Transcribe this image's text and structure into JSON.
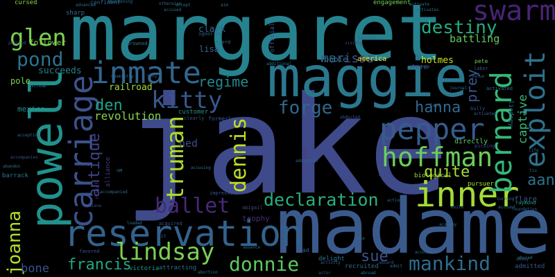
{
  "words": [
    {
      "text": "jake",
      "color": "#3f4a8a"
    },
    {
      "text": "madame",
      "color": "#3b5a8c"
    },
    {
      "text": "margaret",
      "color": "#26828e"
    },
    {
      "text": "maggie",
      "color": "#2a788e"
    },
    {
      "text": "powell",
      "color": "#21918c"
    },
    {
      "text": "reservation",
      "color": "#33628d"
    },
    {
      "text": "inmate",
      "color": "#31668e"
    },
    {
      "text": "carriage",
      "color": "#3b528b"
    },
    {
      "text": "inner",
      "color": "#a5db36"
    },
    {
      "text": "bernard",
      "color": "#35b779"
    },
    {
      "text": "exploit",
      "color": "#2c728e"
    },
    {
      "text": "pepper",
      "color": "#365c8d"
    },
    {
      "text": "hoffman",
      "color": "#6ccd5a"
    },
    {
      "text": "swarm",
      "color": "#482475"
    },
    {
      "text": "destiny",
      "color": "#25ab82"
    },
    {
      "text": "kitty",
      "color": "#38588c"
    },
    {
      "text": "glen",
      "color": "#7ad151"
    },
    {
      "text": "pond",
      "color": "#2c728e"
    },
    {
      "text": "truman",
      "color": "#addc30"
    },
    {
      "text": "dennis",
      "color": "#c2df23"
    },
    {
      "text": "ballet",
      "color": "#482878"
    },
    {
      "text": "lindsay",
      "color": "#7ad151"
    },
    {
      "text": "joanna",
      "color": "#b5de2b"
    },
    {
      "text": "donnie",
      "color": "#5ec962"
    },
    {
      "text": "declaration",
      "color": "#2ab07f"
    },
    {
      "text": "mankind",
      "color": "#2f6c8e"
    },
    {
      "text": "antique",
      "color": "#414487"
    },
    {
      "text": "forge",
      "color": "#31688e"
    },
    {
      "text": "hanna",
      "color": "#31688e"
    },
    {
      "text": "quite",
      "color": "#a8db34"
    },
    {
      "text": "aang",
      "color": "#2c728e"
    },
    {
      "text": "francis",
      "color": "#22a785"
    },
    {
      "text": "den",
      "color": "#20a386"
    },
    {
      "text": "regime",
      "color": "#23898e"
    },
    {
      "text": "sue",
      "color": "#3b528b"
    },
    {
      "text": "revolution",
      "color": "#84d44b"
    },
    {
      "text": "captive",
      "color": "#38b977"
    },
    {
      "text": "prey",
      "color": "#39568c"
    },
    {
      "text": "marissa",
      "color": "#39568c"
    },
    {
      "text": "bone",
      "color": "#3b528b"
    },
    {
      "text": "railroad",
      "color": "#a0da39"
    },
    {
      "text": "mexico",
      "color": "#21918c"
    },
    {
      "text": "ned",
      "color": "#3e4a89"
    },
    {
      "text": "battling",
      "color": "#65cb5e"
    },
    {
      "text": "holmes",
      "color": "#d0e11c"
    },
    {
      "text": "robbie",
      "color": "#2a788e"
    },
    {
      "text": "america",
      "color": "#fde725"
    },
    {
      "text": "clark",
      "color": "#2f6b8e"
    },
    {
      "text": "lisa",
      "color": "#2f6b8e"
    },
    {
      "text": "follower",
      "color": "#84d44b"
    },
    {
      "text": "succeeds",
      "color": "#26818e"
    },
    {
      "text": "pole",
      "color": "#7ad151"
    },
    {
      "text": "cursed",
      "color": "#8bd646"
    },
    {
      "text": "biological",
      "color": "#9bd93c"
    },
    {
      "text": "customer",
      "color": "#21918c"
    },
    {
      "text": "engagement",
      "color": "#6ece58"
    },
    {
      "text": "trophy",
      "color": "#472d7b"
    },
    {
      "text": "torn",
      "color": "#2c728e"
    },
    {
      "text": "directly",
      "color": "#5ec962"
    },
    {
      "text": "victoria",
      "color": "#1e9b8a"
    },
    {
      "text": "recruited",
      "color": "#31688e"
    },
    {
      "text": "delight",
      "color": "#2a788e"
    },
    {
      "text": "attracting",
      "color": "#2c728e"
    },
    {
      "text": "barrack",
      "color": "#2a788e"
    },
    {
      "text": "pursuer",
      "color": "#addc30"
    },
    {
      "text": "flare",
      "color": "#3b528b"
    },
    {
      "text": "admitted",
      "color": "#39568c"
    },
    {
      "text": "lindsey",
      "color": "#2c728e"
    },
    {
      "text": "kim",
      "color": "#443a83"
    },
    {
      "text": "official",
      "color": "#3b528b"
    },
    {
      "text": "formerly",
      "color": "#39568c"
    },
    {
      "text": "alliance",
      "color": "#443983"
    },
    {
      "text": "impression",
      "color": "#3b528b"
    },
    {
      "text": "abigail",
      "color": "#3e4989"
    },
    {
      "text": "sharp",
      "color": "#2c728e"
    },
    {
      "text": "confident",
      "color": "#31688e"
    },
    {
      "text": "labor",
      "color": "#3b528b"
    },
    {
      "text": "pete",
      "color": "#6ece58"
    },
    {
      "text": "raymond",
      "color": "#20a386"
    },
    {
      "text": "accompanies",
      "color": "#3b528b"
    },
    {
      "text": "drowned",
      "color": "#2c728e"
    },
    {
      "text": "activated",
      "color": "#2c728e"
    },
    {
      "text": "bully",
      "color": "#3b528b"
    },
    {
      "text": "picking",
      "color": "#414487"
    },
    {
      "text": "acquaintance",
      "color": "#39568c"
    },
    {
      "text": "sword",
      "color": "#2c728e"
    },
    {
      "text": "ignoring",
      "color": "#31688e"
    },
    {
      "text": "acquired",
      "color": "#3b528b"
    },
    {
      "text": "abbey",
      "color": "#39568c"
    },
    {
      "text": "accepting",
      "color": "#2c728e"
    },
    {
      "text": "attitude",
      "color": "#414487"
    },
    {
      "text": "relief",
      "color": "#443983"
    },
    {
      "text": "achieve",
      "color": "#3b528b"
    },
    {
      "text": "visibly",
      "color": "#414487"
    },
    {
      "text": "suffered",
      "color": "#3b528b"
    },
    {
      "text": "suited",
      "color": "#31688e"
    },
    {
      "text": "abandoning",
      "color": "#2c728e"
    },
    {
      "text": "clearly",
      "color": "#3b528b"
    },
    {
      "text": "laid",
      "color": "#31688e"
    },
    {
      "text": "activity",
      "color": "#31688e"
    },
    {
      "text": "accusing",
      "color": "#2c728e"
    },
    {
      "text": "painted",
      "color": "#3b528b"
    },
    {
      "text": "abandon",
      "color": "#2c728e"
    },
    {
      "text": "actor",
      "color": "#3b528b"
    },
    {
      "text": "abroad",
      "color": "#2c728e"
    },
    {
      "text": "scream",
      "color": "#2c728e"
    },
    {
      "text": "journal",
      "color": "#2c728e"
    },
    {
      "text": "aboard",
      "color": "#3b528b"
    },
    {
      "text": "action",
      "color": "#2c728e"
    },
    {
      "text": "account",
      "color": "#2c728e"
    },
    {
      "text": "academy",
      "color": "#31688e"
    },
    {
      "text": "addiction",
      "color": "#31688e"
    },
    {
      "text": "favored",
      "color": "#3b528b"
    },
    {
      "text": "tiny",
      "color": "#3b528b"
    },
    {
      "text": "chemistry",
      "color": "#2c728e"
    },
    {
      "text": "loaded",
      "color": "#2c728e"
    },
    {
      "text": "sit",
      "color": "#3b528b"
    },
    {
      "text": "ad",
      "color": "#31688e"
    },
    {
      "text": "abducted",
      "color": "#3b528b"
    },
    {
      "text": "absence",
      "color": "#31688e"
    },
    {
      "text": "ace",
      "color": "#2c728e"
    },
    {
      "text": "activate",
      "color": "#2c728e"
    },
    {
      "text": "activates",
      "color": "#2c728e"
    },
    {
      "text": "accuses",
      "color": "#2c728e"
    },
    {
      "text": "accompanied",
      "color": "#2c728e"
    },
    {
      "text": "additional",
      "color": "#2c728e"
    },
    {
      "text": "admit",
      "color": "#31688e"
    },
    {
      "text": "exile",
      "color": "#31688e"
    },
    {
      "text": "aim",
      "color": "#2c728e"
    },
    {
      "text": "um",
      "color": "#2c728e"
    },
    {
      "text": "life",
      "color": "#2c728e"
    },
    {
      "text": "tiu",
      "color": "#2c728e"
    },
    {
      "text": "act",
      "color": "#2c728e"
    },
    {
      "text": "advanced",
      "color": "#2c728e"
    },
    {
      "text": "otherwise",
      "color": "#2c728e"
    },
    {
      "text": "accused",
      "color": "#2c728e"
    },
    {
      "text": "accept",
      "color": "#2c728e"
    },
    {
      "text": "abortion",
      "color": "#2c728e"
    },
    {
      "text": "abused",
      "color": "#2c728e"
    },
    {
      "text": "foundation",
      "color": "#31688e"
    },
    {
      "text": "value",
      "color": "#31688e"
    },
    {
      "text": "activated",
      "color": "#31688e"
    },
    {
      "text": "turning",
      "color": "#31688e"
    }
  ]
}
